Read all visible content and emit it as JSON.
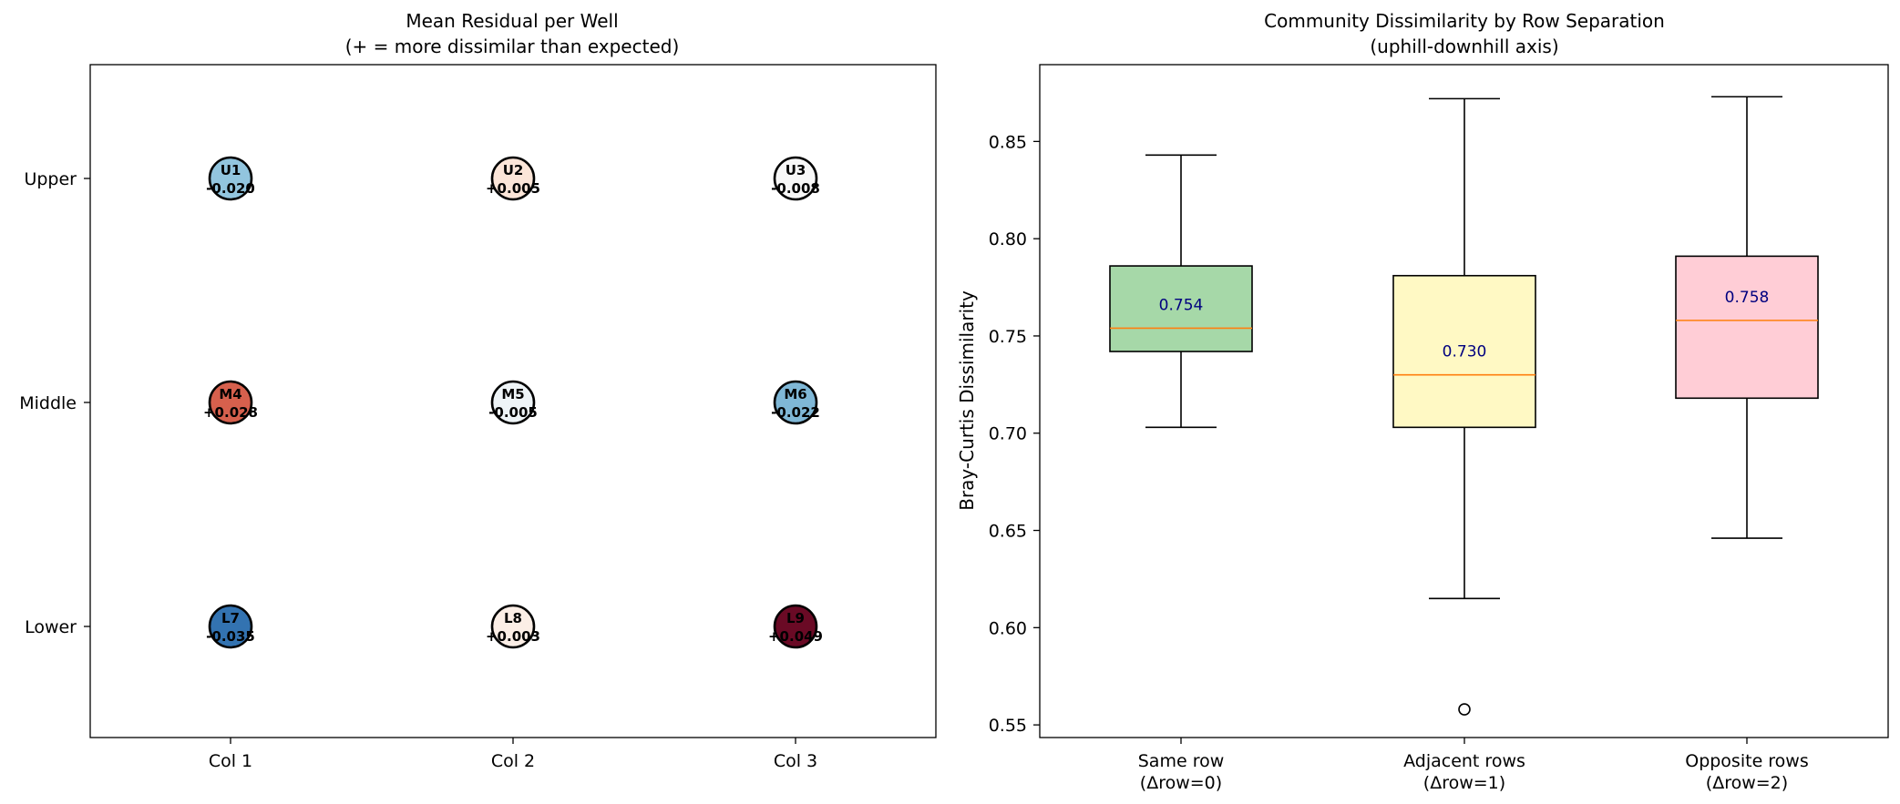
{
  "chart_data": [
    {
      "type": "scatter",
      "title_line1": "Mean Residual per Well",
      "title_line2": "(+ = more dissimilar than expected)",
      "x_categories": [
        "Col 1",
        "Col 2",
        "Col 3"
      ],
      "y_categories": [
        "Upper",
        "Middle",
        "Lower"
      ],
      "wells": [
        {
          "label": "U1",
          "value_text": "-0.020",
          "value": -0.02,
          "col": 1,
          "row": "Upper",
          "color": "#92c5de"
        },
        {
          "label": "U2",
          "value_text": "+0.005",
          "value": 0.005,
          "col": 2,
          "row": "Upper",
          "color": "#fbe5d8"
        },
        {
          "label": "U3",
          "value_text": "-0.008",
          "value": -0.008,
          "col": 3,
          "row": "Upper",
          "color": "#f7f7f7"
        },
        {
          "label": "M4",
          "value_text": "+0.028",
          "value": 0.028,
          "col": 1,
          "row": "Middle",
          "color": "#d6604d"
        },
        {
          "label": "M5",
          "value_text": "-0.005",
          "value": -0.005,
          "col": 2,
          "row": "Middle",
          "color": "#eef4f7"
        },
        {
          "label": "M6",
          "value_text": "-0.022",
          "value": -0.022,
          "col": 3,
          "row": "Middle",
          "color": "#7fb7d6"
        },
        {
          "label": "L7",
          "value_text": "-0.035",
          "value": -0.035,
          "col": 1,
          "row": "Lower",
          "color": "#3373b1"
        },
        {
          "label": "L8",
          "value_text": "+0.003",
          "value": 0.003,
          "col": 2,
          "row": "Lower",
          "color": "#fbeee6"
        },
        {
          "label": "L9",
          "value_text": "+0.049",
          "value": 0.049,
          "col": 3,
          "row": "Lower",
          "color": "#6a0a25"
        }
      ]
    },
    {
      "type": "box",
      "title_line1": "Community Dissimilarity by Row Separation",
      "title_line2": "(uphill-downhill axis)",
      "ylabel": "Bray-Curtis Dissimilarity",
      "ylim": [
        0.5435,
        0.8895
      ],
      "yticks": [
        0.55,
        0.6,
        0.65,
        0.7,
        0.75,
        0.8,
        0.85
      ],
      "ytick_labels": [
        "0.55",
        "0.60",
        "0.65",
        "0.70",
        "0.75",
        "0.80",
        "0.85"
      ],
      "categories": [
        {
          "line1": "Same row",
          "line2": "(Δrow=0)"
        },
        {
          "line1": "Adjacent rows",
          "line2": "(Δrow=1)"
        },
        {
          "line1": "Opposite rows",
          "line2": "(Δrow=2)"
        }
      ],
      "boxes": [
        {
          "whisker_low": 0.703,
          "q1": 0.742,
          "median": 0.754,
          "q3": 0.786,
          "whisker_high": 0.843,
          "outliers": [],
          "color": "#a6d8a8",
          "median_label": "0.754"
        },
        {
          "whisker_low": 0.615,
          "q1": 0.703,
          "median": 0.73,
          "q3": 0.781,
          "whisker_high": 0.872,
          "outliers": [
            0.558
          ],
          "color": "#fff9c4",
          "median_label": "0.730"
        },
        {
          "whisker_low": 0.646,
          "q1": 0.718,
          "median": 0.758,
          "q3": 0.791,
          "whisker_high": 0.873,
          "outliers": [],
          "color": "#ffcdd6",
          "median_label": "0.758"
        }
      ],
      "median_line_color": "#ff7f0e",
      "median_label_color": "#00007f"
    }
  ]
}
